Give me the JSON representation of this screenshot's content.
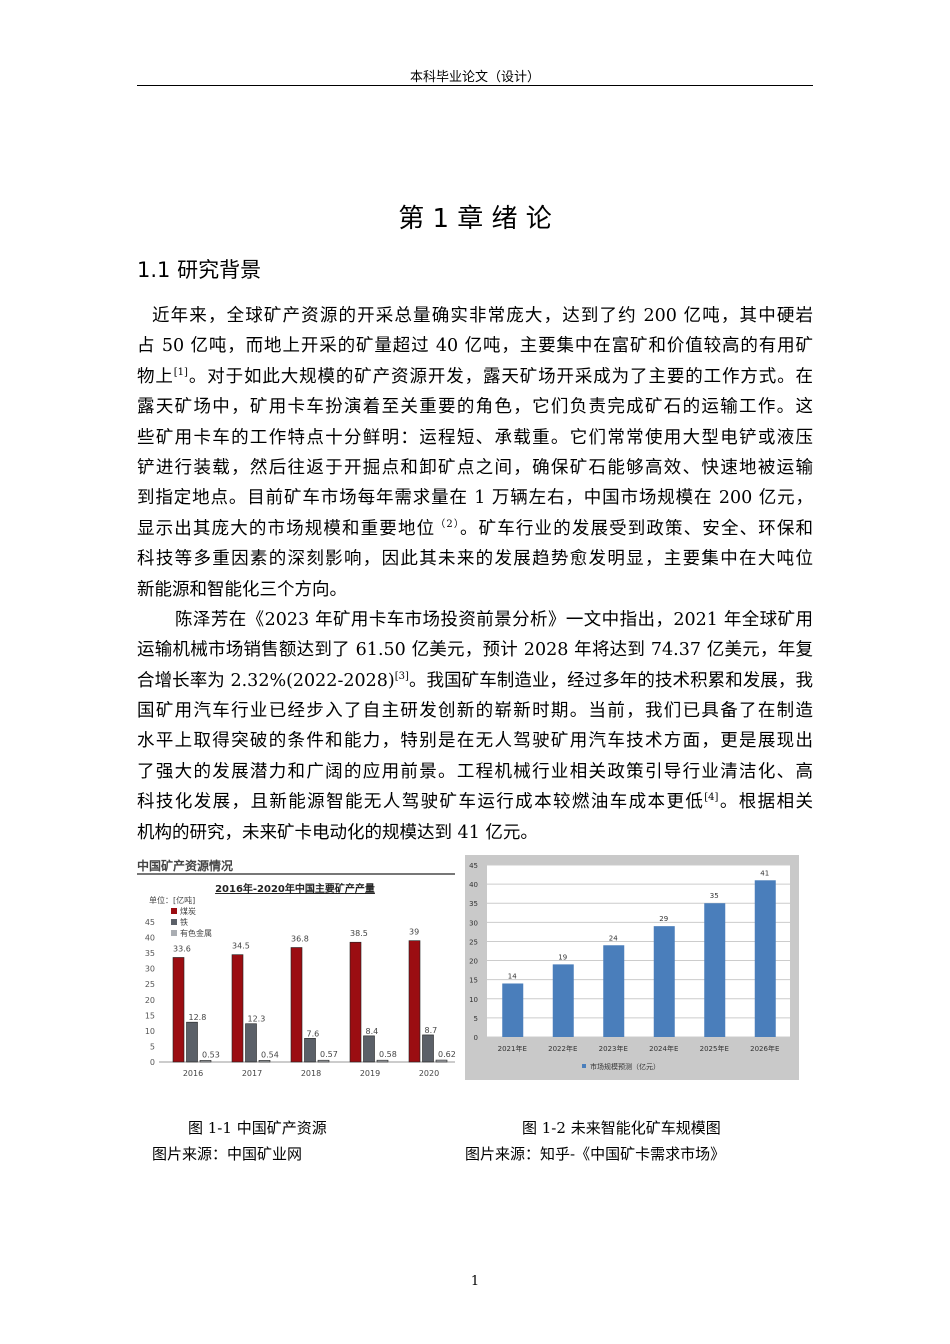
{
  "header": {
    "title": "本科毕业论文（设计）"
  },
  "chapter_title": "第 1 章  绪  论",
  "section_title": "1.1 研究背景",
  "paragraphs": [
    {
      "indent": 1,
      "lines": [
        [
          {
            "t": "近年来，全球矿产资源的开采总量确实非常庞大，达到了约 200 亿吨，其中硬岩"
          }
        ],
        [
          {
            "t": "占 50 亿吨，而地上开采的矿量超过 40 亿吨，主要集中在富矿和价值较高的有用矿"
          }
        ],
        [
          {
            "t": "物上"
          },
          {
            "t": "[1]",
            "sup": true
          },
          {
            "t": "。对于如此大规模的矿产资源开发，露天矿场开采成为了主要的工作方式。在"
          }
        ],
        [
          {
            "t": "露天矿场中，矿用卡车扮演着至关重要的角色，它们负责完成矿石的运输工作。这"
          }
        ],
        [
          {
            "t": "些矿用卡车的工作特点十分鲜明：运程短、承载重。它们常常使用大型电铲或液压"
          }
        ],
        [
          {
            "t": "铲进行装载，然后往返于开掘点和卸矿点之间，确保矿石能够高效、快速地被运输"
          }
        ],
        [
          {
            "t": "到指定地点。目前矿车市场每年需求量在 1 万辆左右，中国市场规模在 200 亿元，"
          }
        ],
        [
          {
            "t": "显示出其庞大的市场规模和重要地位"
          },
          {
            "t": "（2）",
            "sup": true
          },
          {
            "t": "。矿车行业的发展受到政策、安全、环保和"
          }
        ],
        [
          {
            "t": "科技等多重因素的深刻影响，因此其未来的发展趋势愈发明显，主要集中在大吨位"
          }
        ],
        [
          {
            "t": "新能源和智能化三个方向。"
          }
        ]
      ]
    },
    {
      "indent": 2,
      "lines": [
        [
          {
            "t": "陈泽芳在《2023 年矿用卡车市场投资前景分析》一文中指出，2021 年全球矿用"
          }
        ],
        [
          {
            "t": "运输机械市场销售额达到了 61.50 亿美元，预计 2028 年将达到 74.37 亿美元，年复"
          }
        ],
        [
          {
            "t": "合增长率为 2.32%(2022-2028)"
          },
          {
            "t": "[3]",
            "sup": true
          },
          {
            "t": "。我国矿车制造业，经过多年的技术积累和发展，我"
          }
        ],
        [
          {
            "t": "国矿用汽车行业已经步入了自主研发创新的崭新时期。当前，我们已具备了在制造"
          }
        ],
        [
          {
            "t": "水平上取得突破的条件和能力，特别是在无人驾驶矿用汽车技术方面，更是展现出"
          }
        ],
        [
          {
            "t": "了强大的发展潜力和广阔的应用前景。工程机械行业相关政策引导行业清洁化、高"
          }
        ],
        [
          {
            "t": "科技化发展，且新能源智能无人驾驶矿车运行成本较燃油车成本更低"
          },
          {
            "t": "[4]",
            "sup": true
          },
          {
            "t": "。根据相关"
          }
        ],
        [
          {
            "t": "机构的研究，未来矿卡电动化的规模达到 41 亿元。"
          }
        ]
      ]
    }
  ],
  "chart_data": [
    {
      "type": "bar",
      "title": "中国矿产资源情况",
      "subtitle": "2016年-2020年中国主要矿产产量",
      "unit_label": "单位：[亿吨]",
      "categories": [
        "2016",
        "2017",
        "2018",
        "2019",
        "2020"
      ],
      "ylim": [
        0,
        45
      ],
      "yticks": [
        0,
        5,
        10,
        15,
        20,
        25,
        30,
        35,
        40,
        45
      ],
      "series": [
        {
          "name": "煤炭",
          "color": "#9b0d12",
          "values": [
            33.6,
            34.5,
            36.8,
            38.5,
            39
          ]
        },
        {
          "name": "铁",
          "color": "#5b6068",
          "values": [
            12.8,
            12.3,
            7.6,
            8.4,
            8.7
          ]
        },
        {
          "name": "有色金属",
          "color": "#a9adb2",
          "values": [
            0.53,
            0.54,
            0.57,
            0.58,
            0.62
          ]
        }
      ],
      "legend": "top-left",
      "grid": false
    },
    {
      "type": "bar",
      "categories": [
        "2021年E",
        "2022年E",
        "2023年E",
        "2024年E",
        "2025年E",
        "2026年E"
      ],
      "ylim": [
        0,
        45
      ],
      "yticks": [
        0,
        5,
        10,
        15,
        20,
        25,
        30,
        35,
        40,
        45
      ],
      "series": [
        {
          "name": "市场规模预测（亿元）",
          "color": "#4a7ebb",
          "values": [
            14,
            19,
            24,
            29,
            35,
            41
          ]
        }
      ],
      "legend": "bottom",
      "grid": true,
      "background": "#c9c9c9"
    }
  ],
  "captions": {
    "fig1": "图 1-1  中国矿产资源",
    "fig1_source": "图片来源：中国矿业网",
    "fig2": "图 1-2 未来智能化矿车规模图",
    "fig2_source": "图片来源：知乎-《中国矿卡需求市场》"
  },
  "page_number": "1"
}
